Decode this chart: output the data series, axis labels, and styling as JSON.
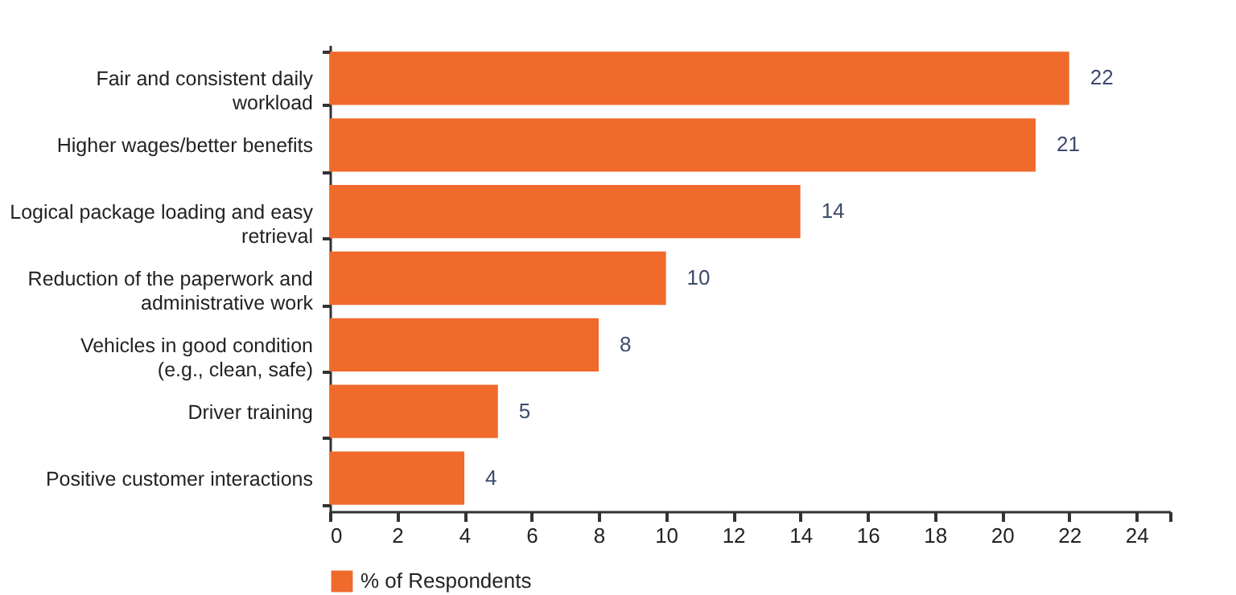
{
  "chart_data": {
    "type": "bar",
    "orientation": "horizontal",
    "categories": [
      "Fair and consistent daily workload",
      "Higher wages/better benefits",
      "Logical package loading and easy retrieval",
      "Reduction of the paperwork and administrative work",
      "Vehicles in good condition (e.g., clean, safe)",
      "Driver training",
      "Positive customer interactions"
    ],
    "series": [
      {
        "name": "% of Respondents",
        "color": "#f06a2c",
        "values": [
          22,
          21,
          14,
          10,
          8,
          5,
          4
        ]
      }
    ],
    "xlim": [
      0,
      25
    ],
    "xticks": [
      0,
      2,
      4,
      6,
      8,
      10,
      12,
      14,
      16,
      18,
      20,
      22,
      24,
      {
        "value": 25,
        "label": null
      }
    ],
    "data_labels": true,
    "grid": false,
    "legend": "bottom"
  }
}
